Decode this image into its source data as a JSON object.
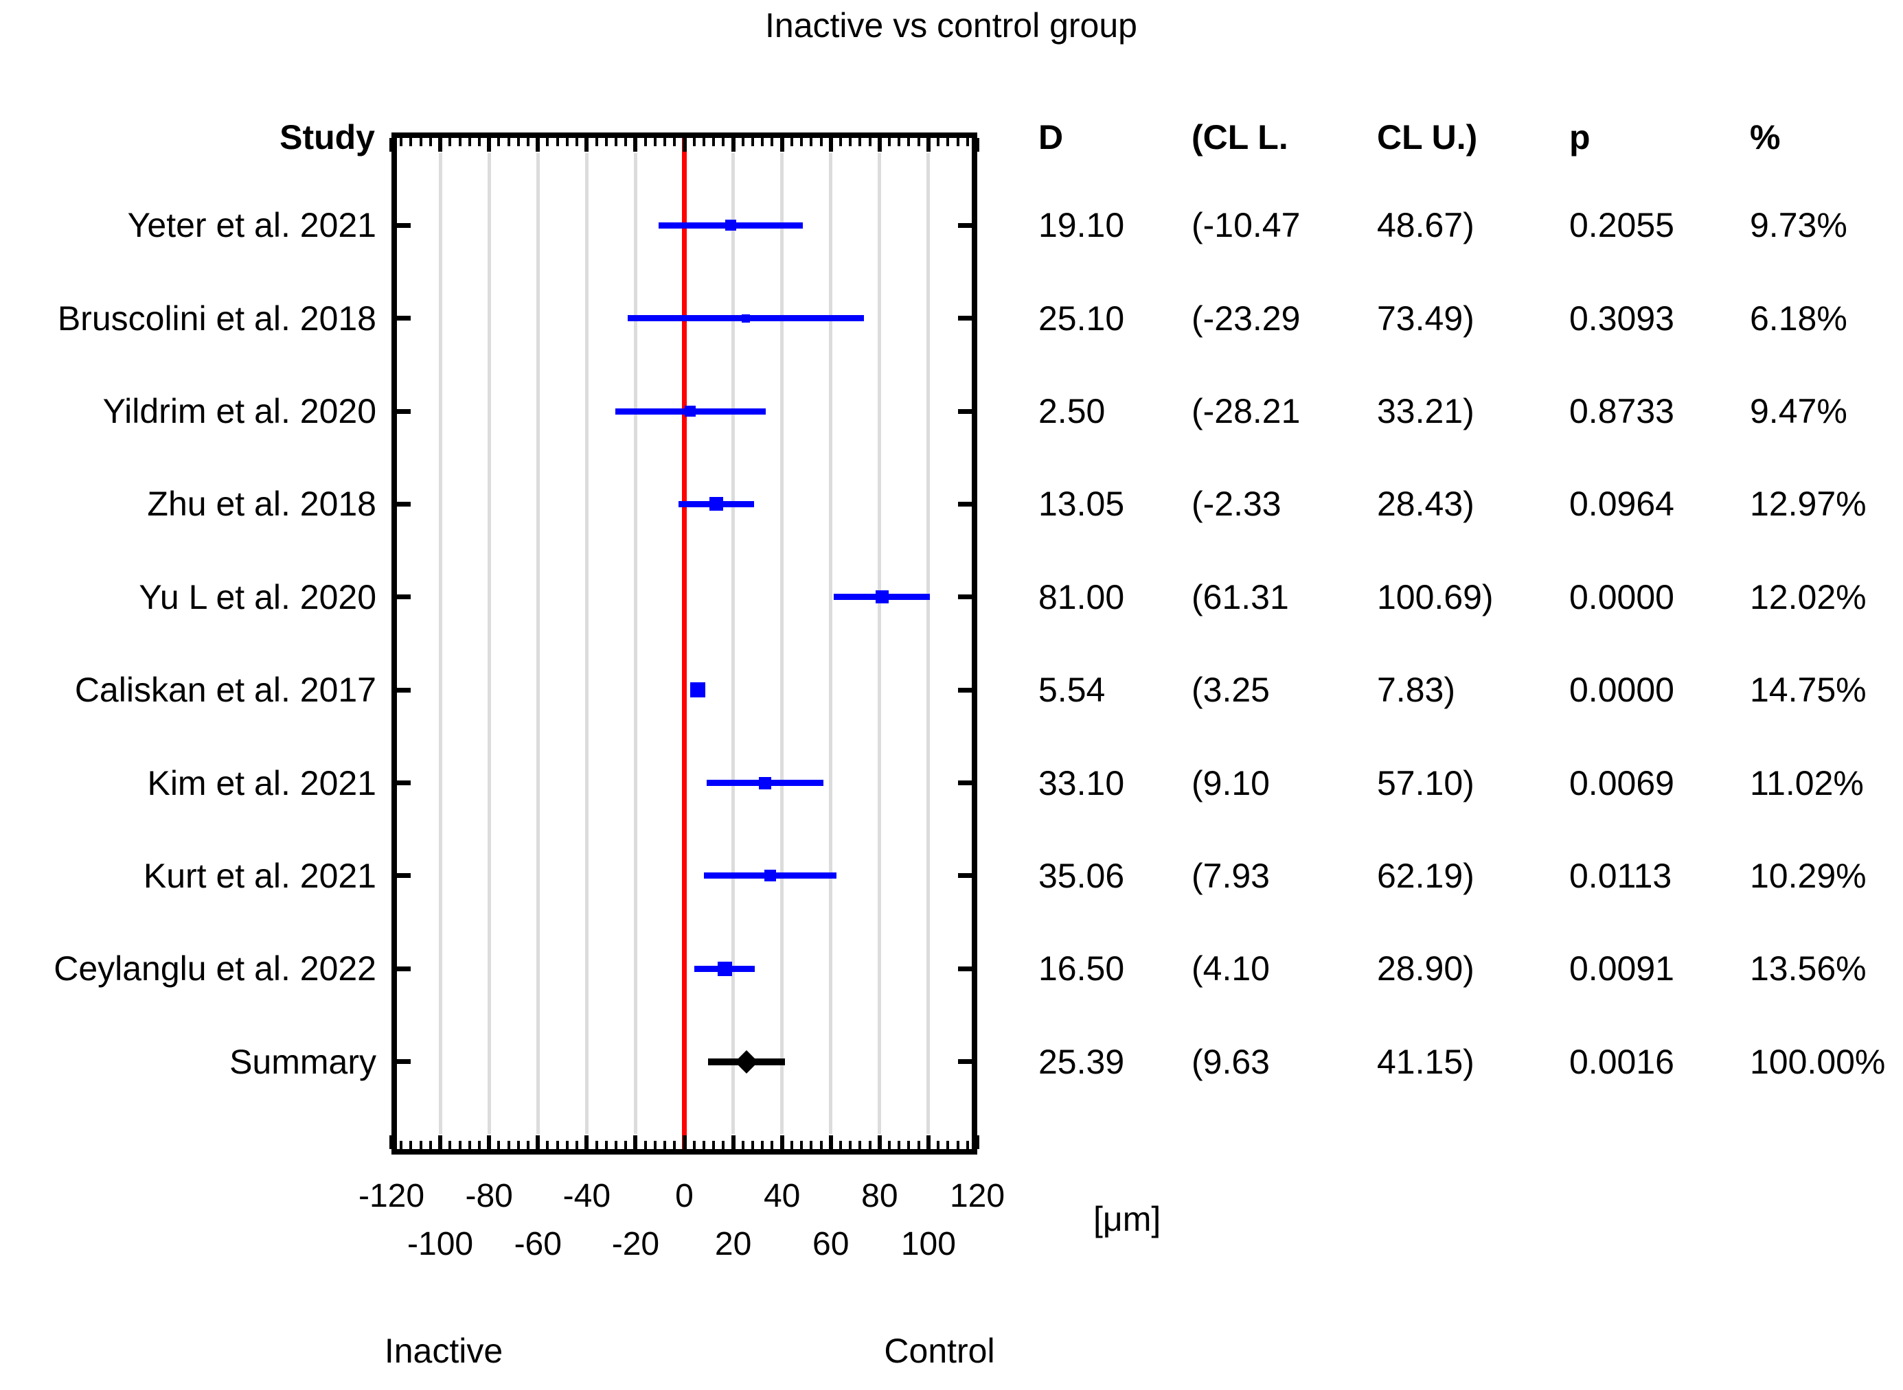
{
  "chart_data": {
    "type": "forest",
    "title": "Inactive vs control group",
    "columns": {
      "study": "Study",
      "d": "D",
      "ci_l": "(CL L.",
      "ci_u": "CL U.)",
      "p": "p",
      "weight": "%"
    },
    "x_axis": {
      "min": -120,
      "max": 120,
      "major_tick_step": 20,
      "minor_tick_step": 4,
      "tick_labels_row1": [
        -120,
        -80,
        -40,
        0,
        40,
        80,
        120
      ],
      "tick_labels_row2": [
        -100,
        -60,
        -20,
        20,
        60,
        100
      ],
      "unit": "[μm]",
      "zero_line_value": 0
    },
    "group_labels": {
      "left": "Inactive",
      "right": "Control"
    },
    "colors": {
      "study_color": "#0000FF",
      "summary_color": "#000000",
      "zero_line_color": "#FF0000",
      "gridline_color": "#DCDCDC"
    },
    "studies": [
      {
        "name": "Yeter et al. 2021",
        "d": 19.1,
        "cl_l": -10.47,
        "cl_u": 48.67,
        "d_text": "19.10",
        "ci_l_text": "(-10.47",
        "ci_u_text": "48.67)",
        "p_text": "0.2055",
        "weight_pct": 9.73,
        "weight_text": "9.73%",
        "is_summary": false
      },
      {
        "name": "Bruscolini et al. 2018",
        "d": 25.1,
        "cl_l": -23.29,
        "cl_u": 73.49,
        "d_text": "25.10",
        "ci_l_text": "(-23.29",
        "ci_u_text": "73.49)",
        "p_text": "0.3093",
        "weight_pct": 6.18,
        "weight_text": "6.18%",
        "is_summary": false
      },
      {
        "name": "Yildrim et al. 2020",
        "d": 2.5,
        "cl_l": -28.21,
        "cl_u": 33.21,
        "d_text": "2.50",
        "ci_l_text": "(-28.21",
        "ci_u_text": "33.21)",
        "p_text": "0.8733",
        "weight_pct": 9.47,
        "weight_text": "9.47%",
        "is_summary": false
      },
      {
        "name": "Zhu et al. 2018",
        "d": 13.05,
        "cl_l": -2.33,
        "cl_u": 28.43,
        "d_text": "13.05",
        "ci_l_text": "(-2.33",
        "ci_u_text": "28.43)",
        "p_text": "0.0964",
        "weight_pct": 12.97,
        "weight_text": "12.97%",
        "is_summary": false
      },
      {
        "name": "Yu L et al. 2020",
        "d": 81.0,
        "cl_l": 61.31,
        "cl_u": 100.69,
        "d_text": "81.00",
        "ci_l_text": "(61.31",
        "ci_u_text": "100.69)",
        "p_text": "0.0000",
        "weight_pct": 12.02,
        "weight_text": "12.02%",
        "is_summary": false
      },
      {
        "name": "Caliskan et al. 2017",
        "d": 5.54,
        "cl_l": 3.25,
        "cl_u": 7.83,
        "d_text": "5.54",
        "ci_l_text": "(3.25",
        "ci_u_text": "7.83)",
        "p_text": "0.0000",
        "weight_pct": 14.75,
        "weight_text": "14.75%",
        "is_summary": false
      },
      {
        "name": "Kim et al. 2021",
        "d": 33.1,
        "cl_l": 9.1,
        "cl_u": 57.1,
        "d_text": "33.10",
        "ci_l_text": "(9.10",
        "ci_u_text": "57.10)",
        "p_text": "0.0069",
        "weight_pct": 11.02,
        "weight_text": "11.02%",
        "is_summary": false
      },
      {
        "name": "Kurt et al. 2021",
        "d": 35.06,
        "cl_l": 7.93,
        "cl_u": 62.19,
        "d_text": "35.06",
        "ci_l_text": "(7.93",
        "ci_u_text": "62.19)",
        "p_text": "0.0113",
        "weight_pct": 10.29,
        "weight_text": "10.29%",
        "is_summary": false
      },
      {
        "name": "Ceylanglu et al. 2022",
        "d": 16.5,
        "cl_l": 4.1,
        "cl_u": 28.9,
        "d_text": "16.50",
        "ci_l_text": "(4.10",
        "ci_u_text": "28.90)",
        "p_text": "0.0091",
        "weight_pct": 13.56,
        "weight_text": "13.56%",
        "is_summary": false
      },
      {
        "name": "Summary",
        "d": 25.39,
        "cl_l": 9.63,
        "cl_u": 41.15,
        "d_text": "25.39",
        "ci_l_text": "(9.63",
        "ci_u_text": "41.15)",
        "p_text": "0.0016",
        "weight_pct": 100.0,
        "weight_text": "100.00%",
        "is_summary": true
      }
    ]
  }
}
